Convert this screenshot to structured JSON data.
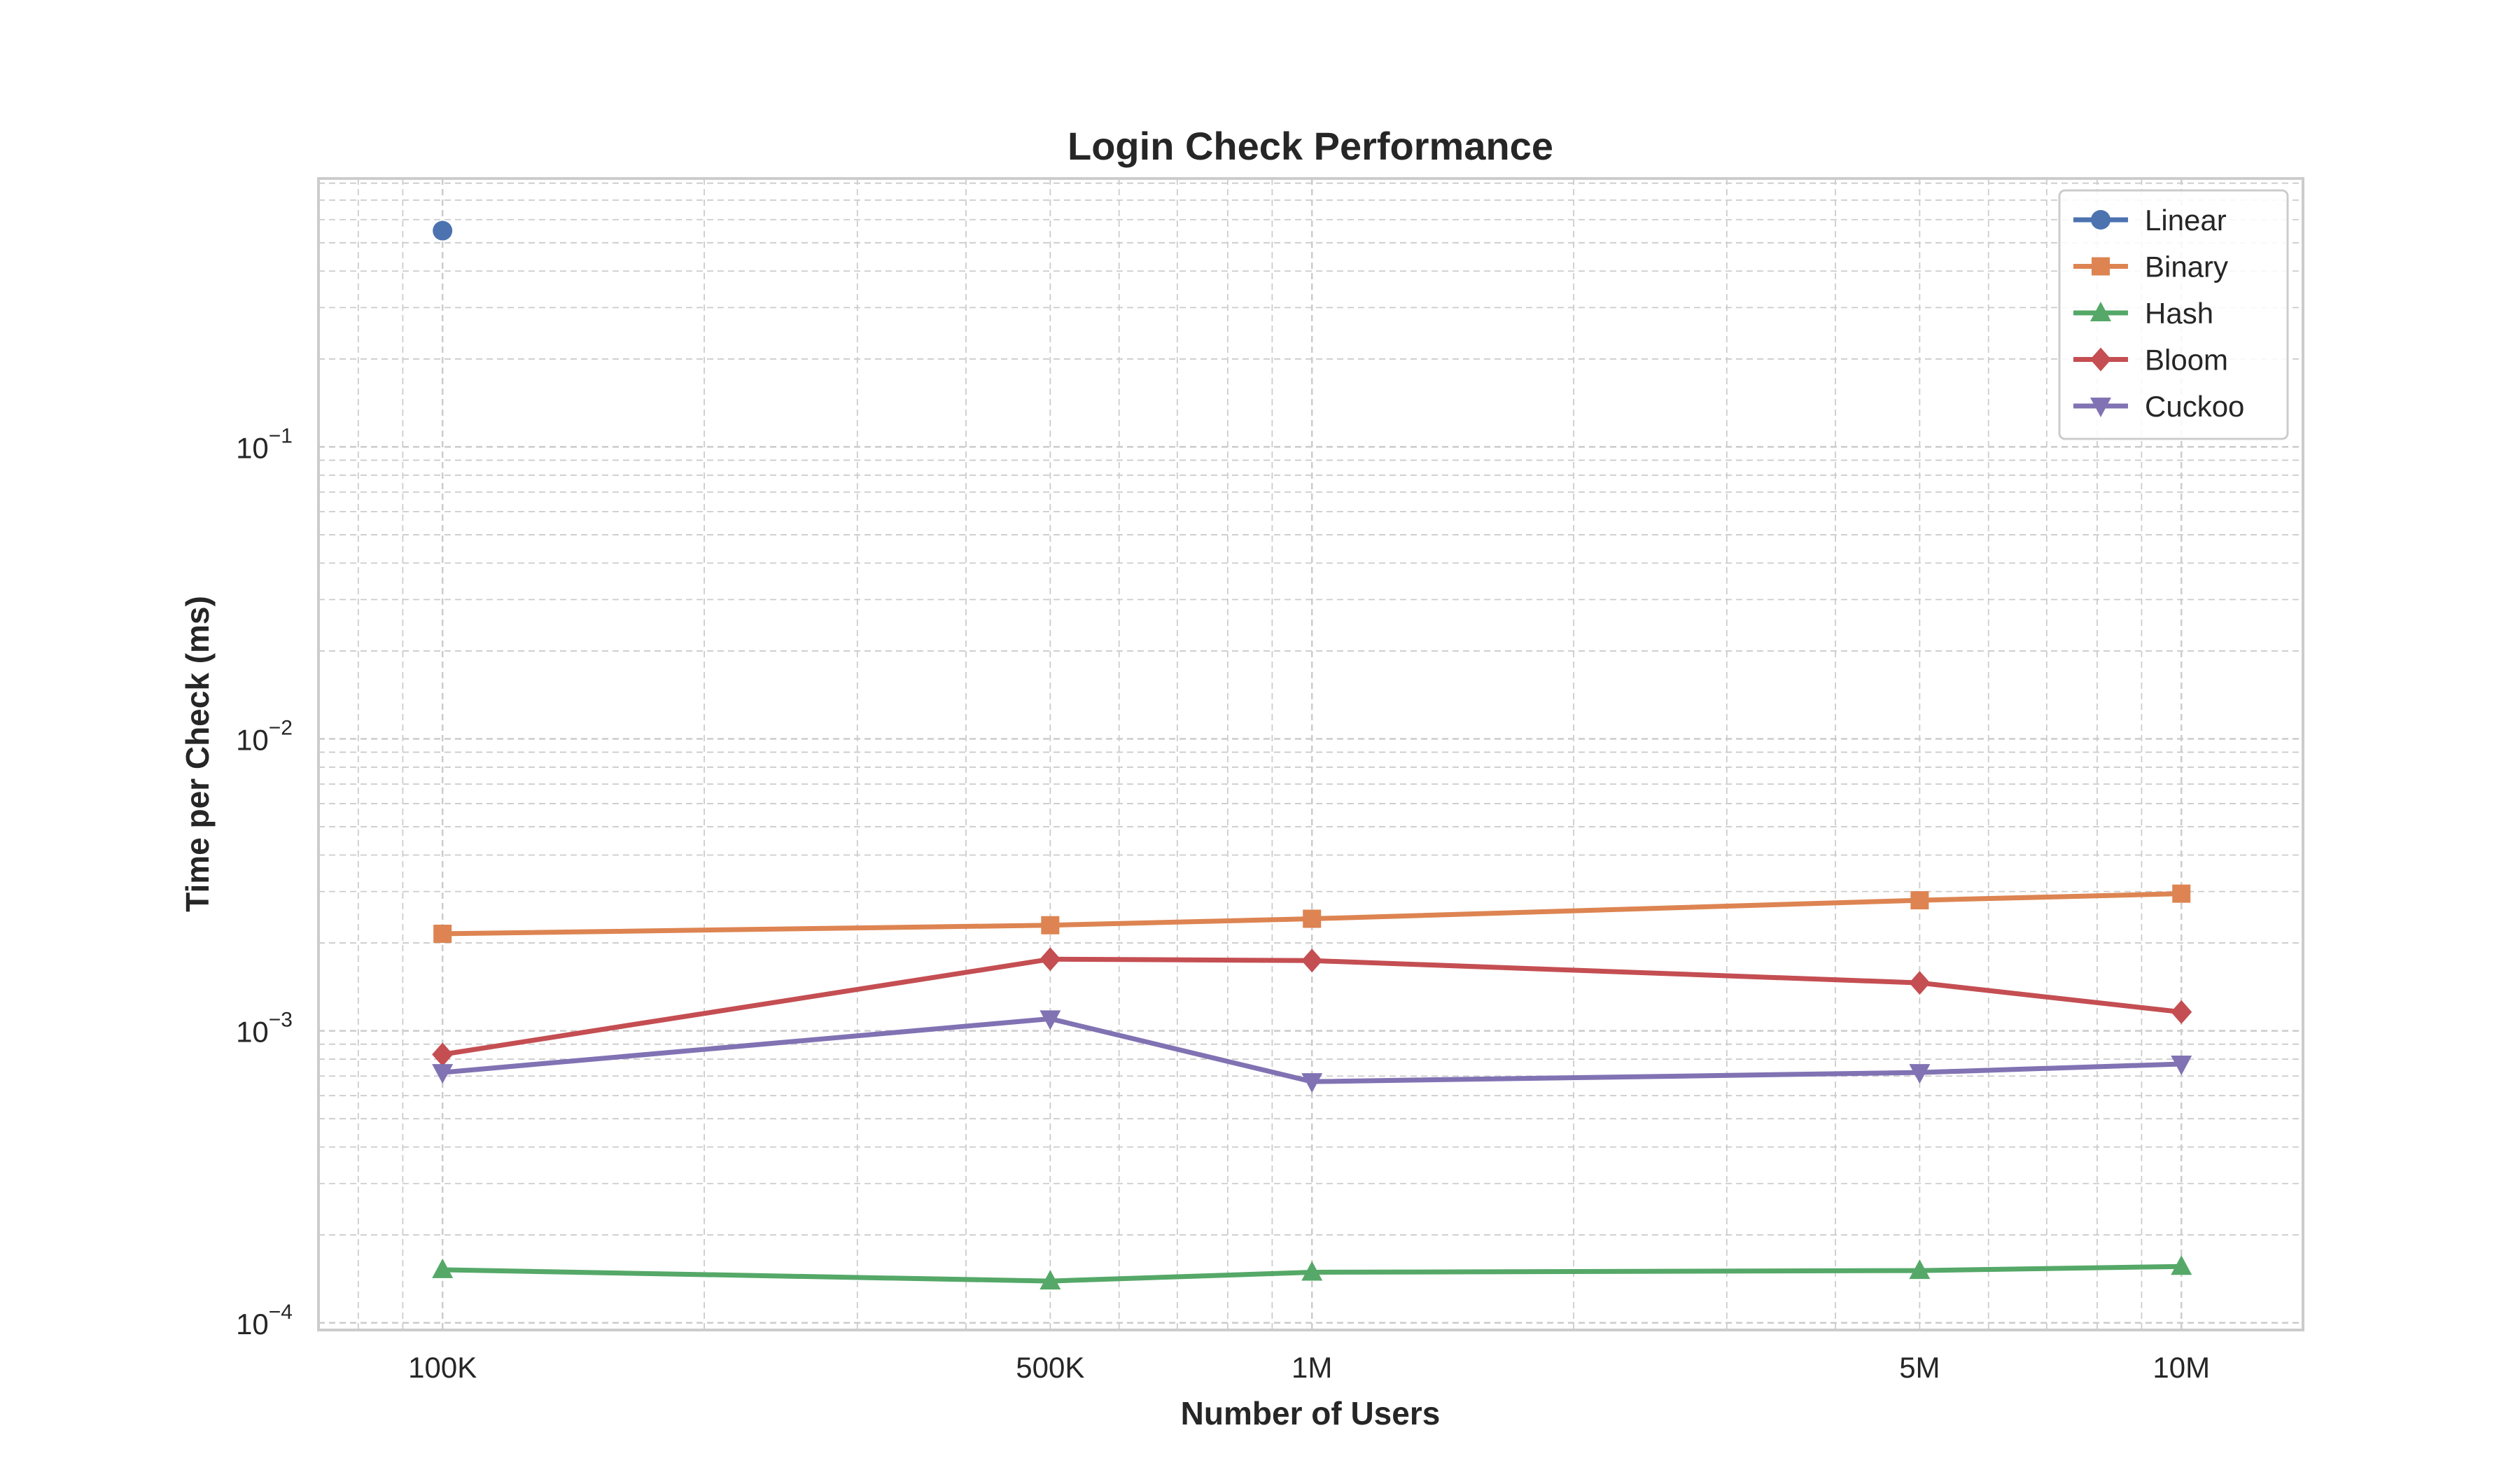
{
  "chart_data": {
    "type": "line",
    "title": "Login Check Performance",
    "xlabel": "Number of Users",
    "ylabel": "Time per Check (ms)",
    "x_scale": "log",
    "y_scale": "log",
    "x": [
      100000,
      500000,
      1000000,
      5000000,
      10000000
    ],
    "x_tick_labels": [
      "100K",
      "500K",
      "1M",
      "5M",
      "10M"
    ],
    "xlim": [
      72000,
      13800000
    ],
    "ylim": [
      9.45e-05,
      0.83
    ],
    "y_ticks": [
      {
        "value": 0.1,
        "base": "10",
        "exp": "−1"
      },
      {
        "value": 0.01,
        "base": "10",
        "exp": "−2"
      },
      {
        "value": 0.001,
        "base": "10",
        "exp": "−3"
      },
      {
        "value": 0.0001,
        "base": "10",
        "exp": "−4"
      }
    ],
    "grid": true,
    "legend_position": "top-right",
    "series": [
      {
        "name": "Linear",
        "color": "#4c72b0",
        "marker": "circle",
        "values": [
          0.55,
          null,
          null,
          null,
          null
        ]
      },
      {
        "name": "Binary",
        "color": "#dd8452",
        "marker": "square",
        "values": [
          0.00215,
          0.0023,
          0.00242,
          0.0028,
          0.00295
        ]
      },
      {
        "name": "Hash",
        "color": "#55a868",
        "marker": "triangle-up",
        "values": [
          0.000152,
          0.000139,
          0.000149,
          0.000151,
          0.000156
        ]
      },
      {
        "name": "Bloom",
        "color": "#c44e52",
        "marker": "diamond",
        "values": [
          0.00083,
          0.00176,
          0.00174,
          0.00146,
          0.00116
        ]
      },
      {
        "name": "Cuckoo",
        "color": "#8172b3",
        "marker": "triangle-down",
        "values": [
          0.00072,
          0.0011,
          0.00067,
          0.00072,
          0.00077
        ]
      }
    ]
  }
}
